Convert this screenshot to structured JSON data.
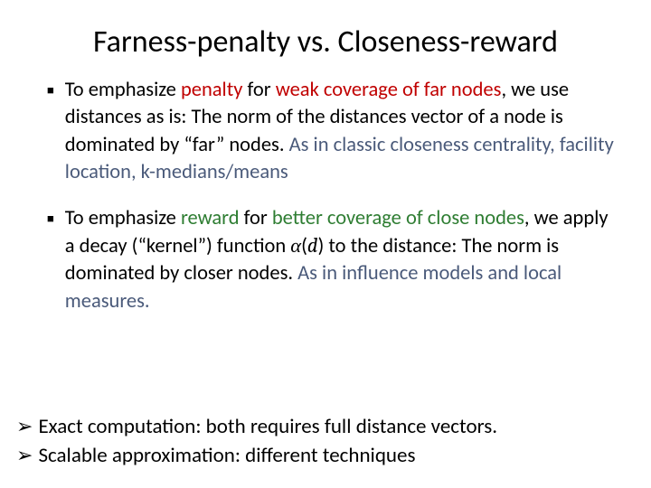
{
  "title": "Farness-penalty vs. Closeness-reward",
  "bullets": [
    {
      "prefix": "To emphasize ",
      "em1": "penalty",
      "mid1": " for ",
      "em2": "weak coverage of  far nodes",
      "body": ", we use distances as is: The norm of the distances vector of a node is dominated by “far” nodes.  ",
      "tail": "As in classic closeness centrality,  facility location, k-medians/means"
    },
    {
      "prefix": "To emphasize ",
      "em1": "reward",
      "mid1": " for ",
      "em2": "better coverage of close nodes",
      "body_a": ", we apply a decay (“kernel”) function ",
      "math_a": "α",
      "math_paren_open": "(",
      "math_d": "d",
      "math_paren_close": ")",
      "body_b": " to the distance:  The norm is dominated by closer nodes. ",
      "tail": "As in influence models and local measures."
    }
  ],
  "endnotes": [
    "Exact computation: both requires full distance vectors.",
    "Scalable approximation: different techniques"
  ],
  "markers": {
    "square": "▪",
    "arrow": "➢"
  },
  "colors": {
    "red": "#c00000",
    "green": "#2e7d32",
    "grayblue": "#4a5a7a",
    "text": "#000000",
    "bg": "#ffffff"
  },
  "fonts": {
    "title_size_pt": 26,
    "body_size_pt": 17,
    "endnote_size_pt": 17
  }
}
